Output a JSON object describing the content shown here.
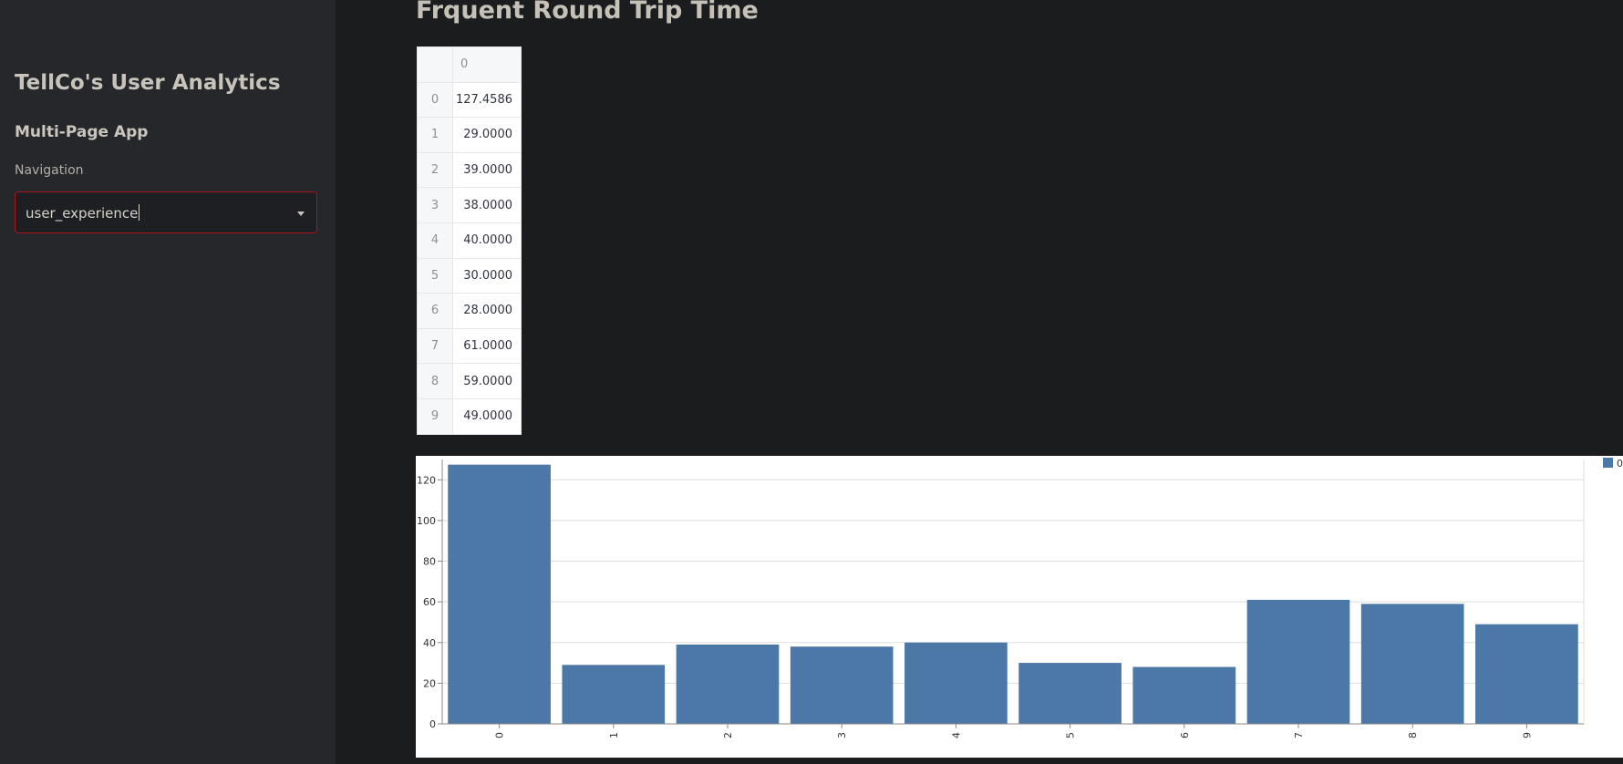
{
  "sidebar": {
    "title": "TellCo's User Analytics",
    "subtitle": "Multi-Page App",
    "nav_label": "Navigation",
    "nav_selected": "user_experience",
    "accent_border": "#a8141a"
  },
  "main": {
    "title": "Frquent Round Trip Time",
    "table": {
      "header": "0",
      "rows": [
        {
          "index": "0",
          "value": "127.4586"
        },
        {
          "index": "1",
          "value": "29.0000"
        },
        {
          "index": "2",
          "value": "39.0000"
        },
        {
          "index": "3",
          "value": "38.0000"
        },
        {
          "index": "4",
          "value": "40.0000"
        },
        {
          "index": "5",
          "value": "30.0000"
        },
        {
          "index": "6",
          "value": "28.0000"
        },
        {
          "index": "7",
          "value": "61.0000"
        },
        {
          "index": "8",
          "value": "59.0000"
        },
        {
          "index": "9",
          "value": "49.0000"
        }
      ]
    }
  },
  "chart_data": {
    "type": "bar",
    "categories": [
      "0",
      "1",
      "2",
      "3",
      "4",
      "5",
      "6",
      "7",
      "8",
      "9"
    ],
    "series": [
      {
        "name": "0",
        "values": [
          127.4586,
          29,
          39,
          38,
          40,
          30,
          28,
          61,
          59,
          49
        ],
        "color": "#4c78a8"
      }
    ],
    "yticks": [
      0,
      20,
      40,
      60,
      80,
      100,
      120
    ],
    "ylim": [
      0,
      130
    ],
    "grid": true,
    "legend": "top-right",
    "title": "",
    "xlabel": "",
    "ylabel": ""
  }
}
